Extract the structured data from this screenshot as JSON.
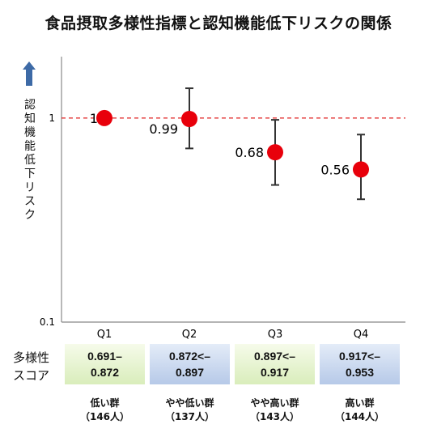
{
  "title": "食品摂取多様性指標と認知機能低下リスクの関係",
  "chart_data": {
    "type": "scatter",
    "title": "食品摂取多様性指標と認知機能低下リスクの関係",
    "ylabel": "認知機能低下リスク",
    "y_scale": "log",
    "ylim": [
      0.1,
      2
    ],
    "yticks": [
      "1",
      "0.1"
    ],
    "reference_line": {
      "y": 1,
      "color": "#e02020",
      "style": "dashed"
    },
    "categories": [
      "Q1",
      "Q2",
      "Q3",
      "Q4"
    ],
    "points": [
      {
        "x": "Q1",
        "y": 1,
        "label": "1",
        "ci_low": null,
        "ci_high": null
      },
      {
        "x": "Q2",
        "y": 0.99,
        "label": "0.99",
        "ci_low": 0.71,
        "ci_high": 1.4
      },
      {
        "x": "Q3",
        "y": 0.68,
        "label": "0.68",
        "ci_low": 0.47,
        "ci_high": 0.98
      },
      {
        "x": "Q4",
        "y": 0.56,
        "label": "0.56",
        "ci_low": 0.4,
        "ci_high": 0.83
      }
    ],
    "marker_color": "#e8000b",
    "arrow_color": "#3d6aa6"
  },
  "score_row": {
    "label_lines": [
      "多様性",
      "スコア"
    ],
    "ranges": [
      {
        "line1": "0.691–",
        "line2": "0.872",
        "color": "green"
      },
      {
        "line1": "0.872<–",
        "line2": "0.897",
        "color": "blue"
      },
      {
        "line1": "0.897<–",
        "line2": "0.917",
        "color": "green"
      },
      {
        "line1": "0.917<–",
        "line2": "0.953",
        "color": "blue"
      }
    ]
  },
  "groups": [
    {
      "name": "低い群",
      "n": "（146人）"
    },
    {
      "name": "やや低い群",
      "n": "（137人）"
    },
    {
      "name": "やや高い群",
      "n": "（143人）"
    },
    {
      "name": "高い群",
      "n": "（144人）"
    }
  ]
}
